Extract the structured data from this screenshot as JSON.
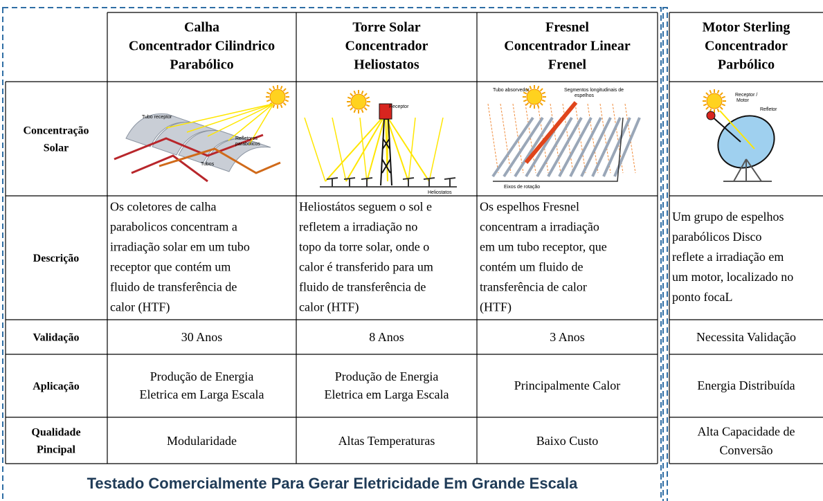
{
  "table": {
    "row_labels": [
      [
        "Concentração",
        "Solar"
      ],
      [
        "Descrição"
      ],
      [
        "Validação"
      ],
      [
        "Aplicação"
      ],
      [
        "Qualidade",
        "Pincipal"
      ]
    ],
    "columns": [
      {
        "header": [
          "Calha",
          "Concentrador Cilindrico",
          "Parabólico"
        ],
        "figure_labels": [
          "Tubo receptor",
          "Refletores",
          "parabólicos",
          "Tubos"
        ],
        "description": [
          "Os coletores de calha",
          "parabolicos  concentram a",
          "irradiação solar em um tubo",
          "receptor que contém um",
          "fluido de transferência de",
          "calor (HTF)"
        ],
        "validation": "30 Anos",
        "application": [
          "Produção de Energia",
          "Eletrica em Larga Escala"
        ],
        "quality": [
          "Modularidade"
        ]
      },
      {
        "header": [
          "Torre Solar",
          "Concentrador",
          "Heliostatos"
        ],
        "figure_labels": [
          "Receptor",
          "Heliostatos"
        ],
        "description": [
          "Heliostátos seguem o sol e",
          "refletem a irradiação no",
          "topo  da torre solar, onde o",
          "calor é  transferido para um",
          "fluido de  transferência de",
          "calor (HTF)"
        ],
        "validation": "8 Anos",
        "application": [
          "Produção de Energia",
          "Eletrica em Larga Escala"
        ],
        "quality": [
          "Altas Temperaturas"
        ]
      },
      {
        "header": [
          "Fresnel",
          "Concentrador Linear",
          "Frenel"
        ],
        "figure_labels": [
          "Tubo absorvedor",
          "Segmentos longitudinais de",
          "espelhos",
          "Eixos de rotação"
        ],
        "description": [
          " Os espelhos Fresnel",
          "concentram   a irradiação",
          "em um tubo receptor,  que",
          "contém um fluido de",
          "transferência  de calor",
          "(HTF)"
        ],
        "validation": "3 Anos",
        "application": [
          "Principalmente Calor"
        ],
        "quality": [
          "Baixo Custo"
        ]
      },
      {
        "header": [
          "Motor Sterling",
          "Concentrador",
          "Parbólico"
        ],
        "figure_labels": [
          "Receptor /",
          "Motor",
          "Refletor"
        ],
        "description": [
          "Um grupo de espelhos",
          "parabólicos Disco",
          "reflete a irradiação em",
          "um motor, localizado no",
          "ponto focaL"
        ],
        "validation": "Necessita Validação",
        "application": [
          "Energia Distribuída"
        ],
        "quality": [
          "Alta Capacidade de",
          "Conversão"
        ]
      }
    ]
  },
  "footer": "Testado Comercialmente Para Gerar Eletricidade Em Grande Escala"
}
